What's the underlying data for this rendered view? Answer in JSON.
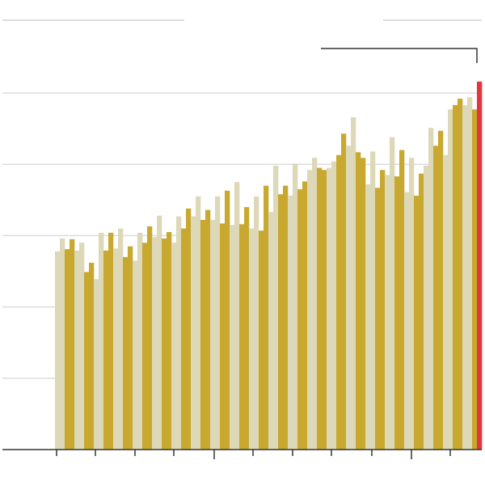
{
  "chart_data": {
    "type": "bar",
    "values": [
      2.78,
      2.96,
      2.81,
      2.95,
      2.79,
      2.9,
      2.49,
      2.62,
      2.39,
      3.04,
      2.79,
      3.04,
      2.82,
      3.1,
      2.7,
      2.85,
      2.65,
      3.04,
      2.9,
      3.13,
      2.98,
      3.28,
      2.96,
      3.05,
      2.9,
      3.27,
      3.1,
      3.38,
      3.27,
      3.55,
      3.22,
      3.36,
      3.22,
      3.55,
      3.17,
      3.63,
      3.15,
      3.75,
      3.16,
      3.4,
      3.1,
      3.55,
      3.07,
      3.7,
      3.33,
      3.98,
      3.58,
      3.7,
      3.56,
      4.01,
      3.65,
      3.76,
      3.92,
      4.09,
      3.95,
      3.92,
      3.95,
      4.04,
      4.13,
      4.43,
      4.26,
      4.66,
      4.17,
      4.09,
      3.72,
      4.18,
      3.67,
      3.92,
      3.85,
      4.38,
      3.83,
      4.2,
      3.61,
      4.09,
      3.56,
      3.87,
      3.98,
      4.51,
      4.26,
      4.47,
      4.13,
      4.77,
      4.83,
      4.92,
      4.83,
      4.94,
      4.77,
      5.16
    ],
    "colors": [
      "#ddd8b8",
      "#ddd8b8",
      "#c9a830",
      "#c9a830",
      "#ddd8b8",
      "#ddd8b8",
      "#c9a830",
      "#c9a830",
      "#ddd8b8",
      "#ddd8b8",
      "#c9a830",
      "#c9a830",
      "#ddd8b8",
      "#ddd8b8",
      "#c9a830",
      "#c9a830",
      "#ddd8b8",
      "#ddd8b8",
      "#c9a830",
      "#c9a830",
      "#ddd8b8",
      "#ddd8b8",
      "#c9a830",
      "#c9a830",
      "#ddd8b8",
      "#ddd8b8",
      "#c9a830",
      "#c9a830",
      "#ddd8b8",
      "#ddd8b8",
      "#c9a830",
      "#c9a830",
      "#ddd8b8",
      "#ddd8b8",
      "#c9a830",
      "#c9a830",
      "#ddd8b8",
      "#ddd8b8",
      "#c9a830",
      "#c9a830",
      "#ddd8b8",
      "#ddd8b8",
      "#c9a830",
      "#c9a830",
      "#ddd8b8",
      "#ddd8b8",
      "#c9a830",
      "#c9a830",
      "#ddd8b8",
      "#ddd8b8",
      "#c9a830",
      "#c9a830",
      "#ddd8b8",
      "#ddd8b8",
      "#c9a830",
      "#c9a830",
      "#ddd8b8",
      "#ddd8b8",
      "#c9a830",
      "#c9a830",
      "#ddd8b8",
      "#ddd8b8",
      "#c9a830",
      "#c9a830",
      "#ddd8b8",
      "#ddd8b8",
      "#c9a830",
      "#c9a830",
      "#ddd8b8",
      "#ddd8b8",
      "#c9a830",
      "#c9a830",
      "#ddd8b8",
      "#ddd8b8",
      "#c9a830",
      "#c9a830",
      "#ddd8b8",
      "#ddd8b8",
      "#c9a830",
      "#c9a830",
      "#ddd8b8",
      "#ddd8b8",
      "#c9a830",
      "#c9a830",
      "#ddd8b8",
      "#ddd8b8",
      "#c9a830",
      "#e8343f"
    ],
    "ylim": [
      0,
      6
    ],
    "yticks": [
      0,
      1,
      2,
      3,
      4,
      5
    ],
    "grid": true
  }
}
